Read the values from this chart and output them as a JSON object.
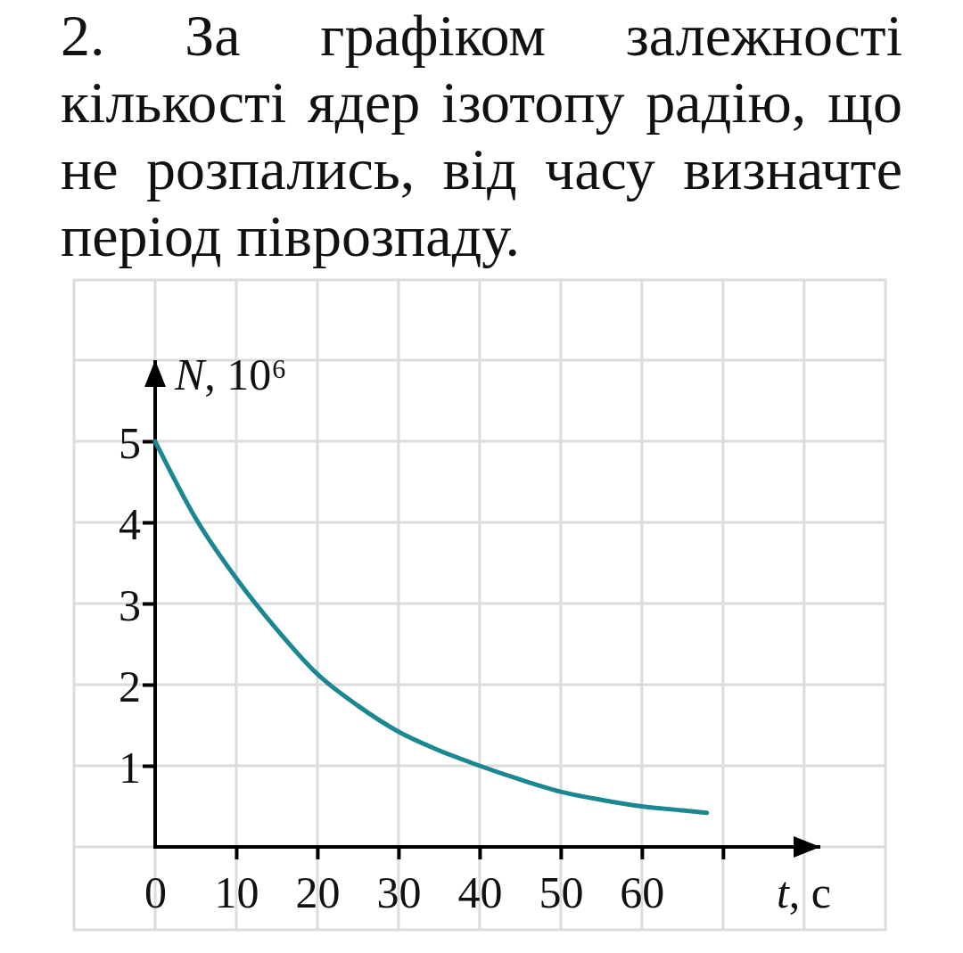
{
  "chart_data": {
    "type": "line",
    "title": "2. За графіком залежності кількості ядер ізотопу радію, що не розпались, від часу визначте період піврозпаду.",
    "xlabel": "t, c",
    "ylabel": "N, 10⁶",
    "x": [
      0,
      5,
      10,
      15,
      20,
      25,
      30,
      35,
      40,
      45,
      50,
      55,
      60,
      65,
      68
    ],
    "values": [
      5,
      4.05,
      3.31,
      2.68,
      2.13,
      1.74,
      1.42,
      1.19,
      1.0,
      0.83,
      0.68,
      0.58,
      0.5,
      0.45,
      0.42
    ],
    "color": "#1b8791",
    "xlim": [
      0,
      82
    ],
    "ylim": [
      0,
      6
    ],
    "xticks": [
      0,
      10,
      20,
      30,
      40,
      50,
      60,
      {
        "value": 70,
        "label": null
      },
      {
        "value": 80,
        "label": null
      }
    ],
    "yticks": [
      {
        "value": 0,
        "label": null
      },
      1,
      2,
      3,
      4,
      5,
      {
        "value": 6,
        "label": null
      }
    ],
    "grid": true
  }
}
